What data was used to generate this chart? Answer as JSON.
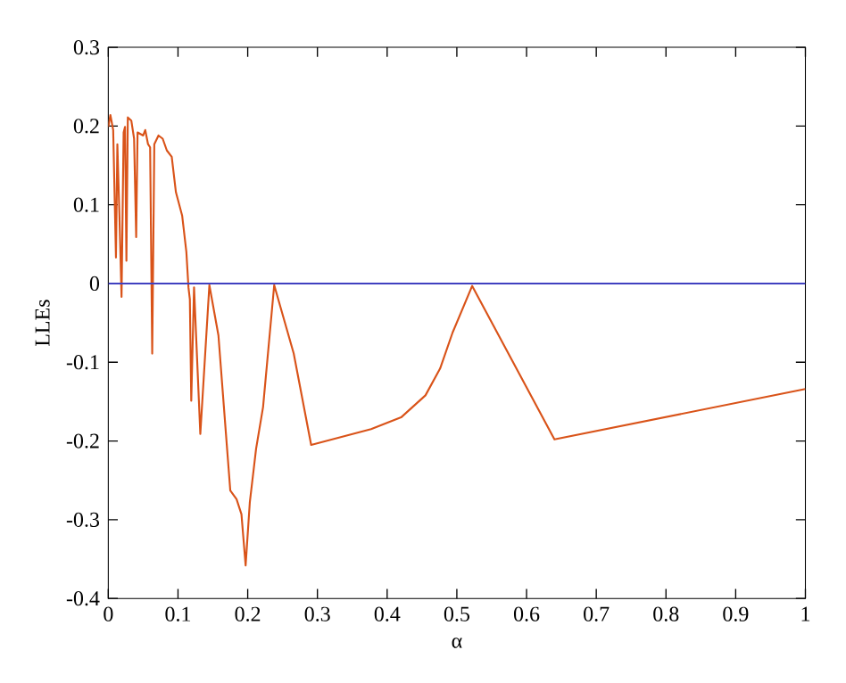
{
  "chart_data": {
    "type": "line",
    "xlabel": "α",
    "ylabel": "LLEs",
    "xlim": [
      0,
      1
    ],
    "ylim": [
      -0.4,
      0.3
    ],
    "xticks": [
      0,
      0.1,
      0.2,
      0.3,
      0.4,
      0.5,
      0.6,
      0.7,
      0.8,
      0.9,
      1
    ],
    "yticks": [
      -0.4,
      -0.3,
      -0.2,
      -0.1,
      0,
      0.1,
      0.2,
      0.3
    ],
    "grid": false,
    "series": [
      {
        "color": "#d95319",
        "x": [
          0,
          0.003,
          0.007,
          0.011,
          0.013,
          0.016,
          0.019,
          0.022,
          0.024,
          0.026,
          0.028,
          0.033,
          0.037,
          0.04,
          0.042,
          0.05,
          0.053,
          0.057,
          0.06,
          0.063,
          0.066,
          0.072,
          0.078,
          0.084,
          0.091,
          0.097,
          0.106,
          0.112,
          0.115,
          0.117,
          0.119,
          0.123,
          0.132,
          0.145,
          0.158,
          0.175,
          0.184,
          0.191,
          0.197,
          0.203,
          0.212,
          0.222,
          0.238,
          0.266,
          0.291,
          0.377,
          0.42,
          0.455,
          0.476,
          0.494,
          0.522,
          0.64,
          1.0
        ],
        "values": [
          0.199,
          0.214,
          0.195,
          0.033,
          0.177,
          0.086,
          -0.017,
          0.192,
          0.199,
          0.029,
          0.211,
          0.207,
          0.184,
          0.059,
          0.192,
          0.188,
          0.195,
          0.177,
          0.173,
          -0.089,
          0.177,
          0.188,
          0.184,
          0.169,
          0.161,
          0.116,
          0.086,
          0.04,
          -0.005,
          -0.02,
          -0.149,
          -0.005,
          -0.191,
          -0.002,
          -0.066,
          -0.263,
          -0.274,
          -0.293,
          -0.358,
          -0.278,
          -0.21,
          -0.157,
          -0.002,
          -0.089,
          -0.205,
          -0.185,
          -0.17,
          -0.142,
          -0.108,
          -0.062,
          -0.003,
          -0.198,
          -0.134
        ]
      },
      {
        "color": "#4040c0",
        "x": [
          0,
          1
        ],
        "values": [
          0,
          0
        ]
      }
    ]
  }
}
